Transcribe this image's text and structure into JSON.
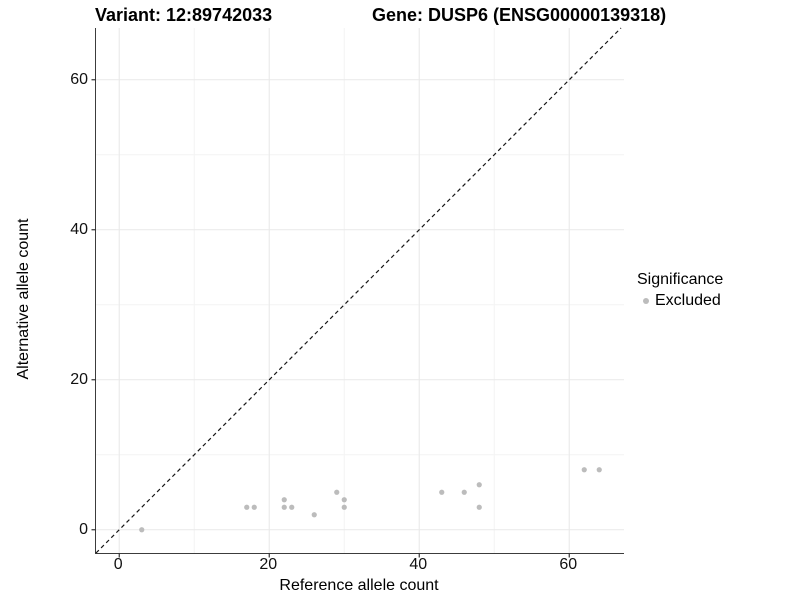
{
  "figure": {
    "title_left": "Variant: 12:89742033",
    "title_right": "Gene: DUSP6 (ENSG00000139318)"
  },
  "axes": {
    "x_label": "Reference allele count",
    "y_label": "Alternative allele count"
  },
  "legend": {
    "title": "Significance",
    "items": [
      {
        "label": "Excluded",
        "color": "#bcbcbc"
      }
    ]
  },
  "colors": {
    "background": "#ffffff",
    "point": "#bcbcbc",
    "reference_line": "#161616",
    "axis_line": "#3c3c3c",
    "tick": "#333333",
    "grid_major": "#e9e9e9",
    "grid_minor": "#f4f4f4",
    "text": "#000000"
  },
  "chart_data": {
    "type": "scatter",
    "title": "Variant: 12:89742033   Gene: DUSP6 (ENSG00000139318)",
    "xlabel": "Reference allele count",
    "ylabel": "Alternative allele count",
    "xlim": [
      -3.1,
      67.3
    ],
    "ylim": [
      -3.1,
      66.9
    ],
    "x_breaks": [
      0,
      20,
      40,
      60
    ],
    "y_breaks": [
      0,
      20,
      40,
      60
    ],
    "x_minor_breaks": [
      10,
      30,
      50
    ],
    "y_minor_breaks": [
      10,
      30,
      50
    ],
    "grid": true,
    "legend_position": "right",
    "reference_line": {
      "type": "identity y=x",
      "style": "dashed",
      "color": "#161616"
    },
    "series": [
      {
        "name": "Excluded",
        "color": "#bcbcbc",
        "points": [
          [
            3,
            0
          ],
          [
            17,
            3
          ],
          [
            18,
            3
          ],
          [
            22,
            4
          ],
          [
            22,
            3
          ],
          [
            23,
            3
          ],
          [
            26,
            2
          ],
          [
            29,
            5
          ],
          [
            30,
            4
          ],
          [
            30,
            3
          ],
          [
            43,
            5
          ],
          [
            46,
            5
          ],
          [
            48,
            6
          ],
          [
            48,
            3
          ],
          [
            62,
            8
          ],
          [
            64,
            8
          ]
        ]
      }
    ]
  }
}
